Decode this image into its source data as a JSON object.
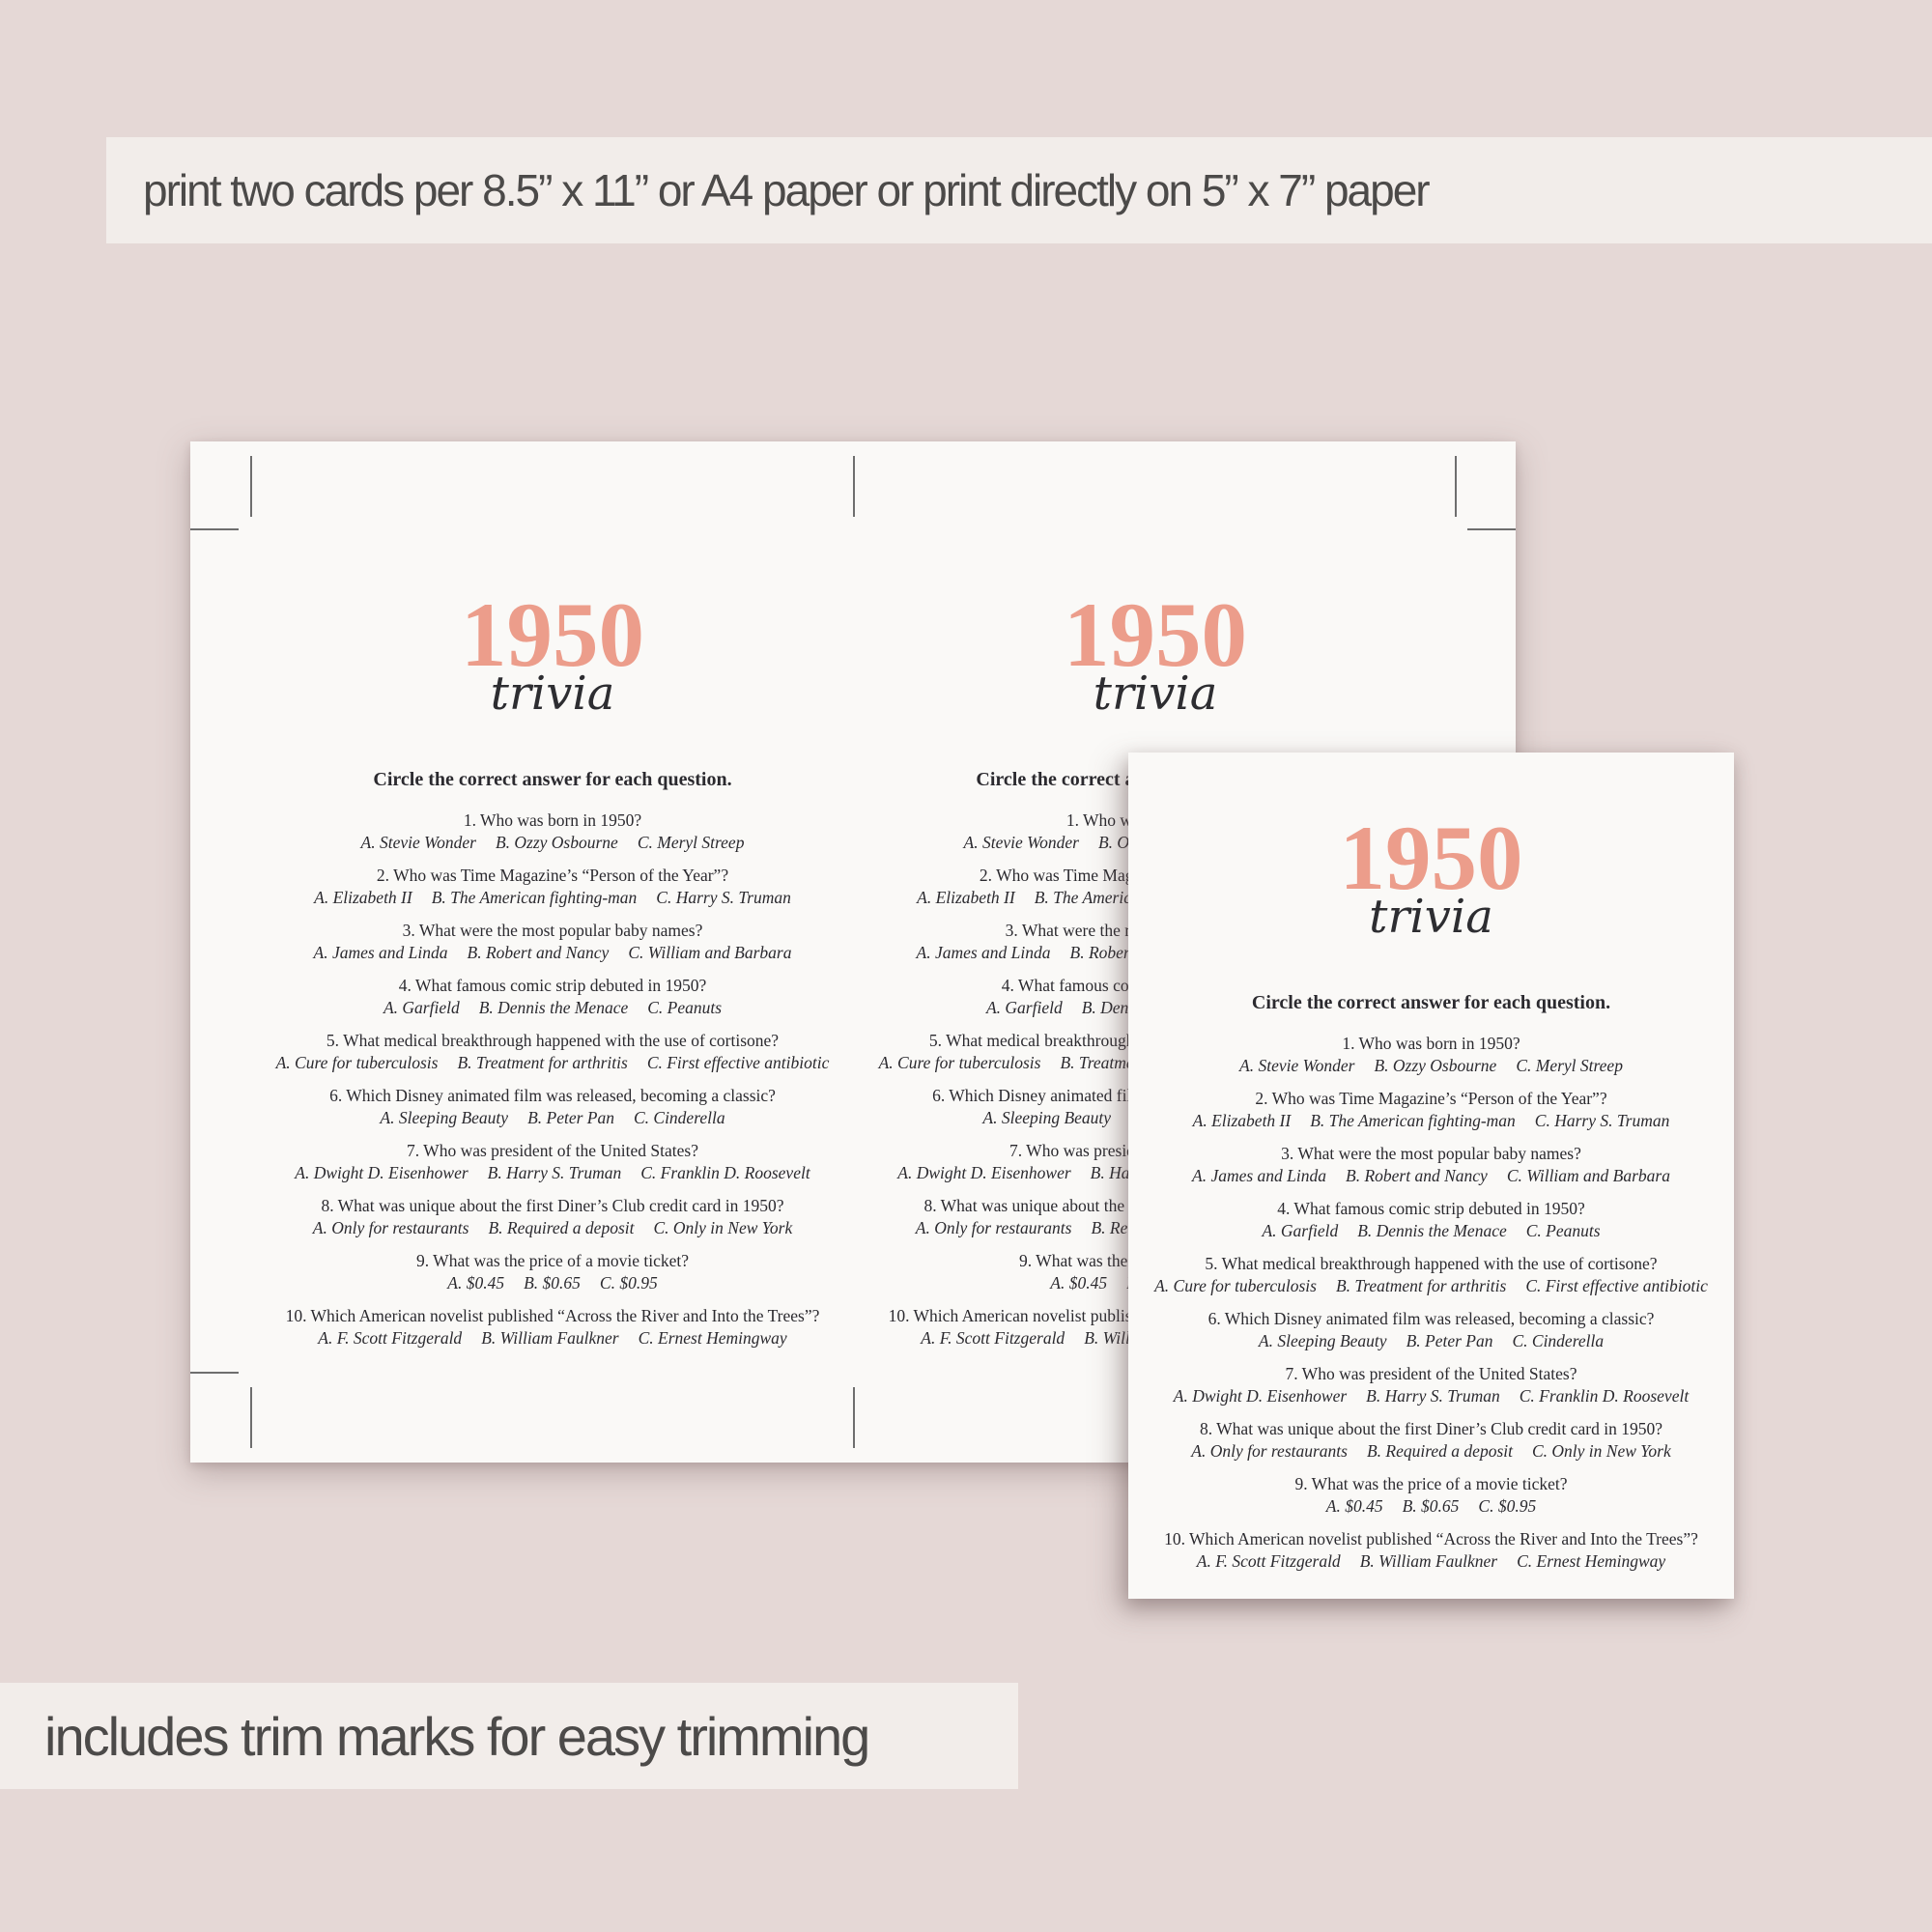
{
  "banners": {
    "top": "print two cards per 8.5” x 11” or A4 paper or print directly on 5” x 7” paper",
    "bottom": "includes trim marks for easy trimming"
  },
  "card": {
    "year": "1950",
    "subtitle": "trivia",
    "instruction": "Circle the correct answer for each question.",
    "questions": [
      {
        "q": "1. Who was born in 1950?",
        "options": [
          "A. Stevie Wonder",
          "B. Ozzy Osbourne",
          "C. Meryl Streep"
        ]
      },
      {
        "q": "2. Who was Time Magazine’s “Person of the Year”?",
        "options": [
          "A. Elizabeth II",
          "B. The American fighting-man",
          "C. Harry S. Truman"
        ]
      },
      {
        "q": "3. What were the most popular baby names?",
        "options": [
          "A. James and Linda",
          "B. Robert and Nancy",
          "C. William and Barbara"
        ]
      },
      {
        "q": "4. What famous comic strip debuted in 1950?",
        "options": [
          "A. Garfield",
          "B. Dennis the Menace",
          "C. Peanuts"
        ]
      },
      {
        "q": "5. What medical breakthrough happened with the use of cortisone?",
        "options": [
          "A. Cure for tuberculosis",
          "B. Treatment for arthritis",
          "C. First effective antibiotic"
        ]
      },
      {
        "q": "6. Which Disney animated film was released, becoming a classic?",
        "options": [
          "A. Sleeping Beauty",
          "B. Peter Pan",
          "C. Cinderella"
        ]
      },
      {
        "q": "7. Who was president of the United States?",
        "options": [
          "A. Dwight D. Eisenhower",
          "B. Harry S. Truman",
          "C. Franklin D. Roosevelt"
        ]
      },
      {
        "q": "8. What was unique about the first Diner’s Club credit card in 1950?",
        "options": [
          "A. Only for restaurants",
          "B. Required a deposit",
          "C. Only in New York"
        ]
      },
      {
        "q": "9. What was the price of a movie ticket?",
        "options": [
          "A. $0.45",
          "B. $0.65",
          "C. $0.95"
        ]
      },
      {
        "q": "10. Which American novelist published “Across the River and Into the Trees”?",
        "options": [
          "A. F. Scott Fitzgerald",
          "B. William Faulkner",
          "C. Ernest Hemingway"
        ]
      }
    ]
  },
  "colors": {
    "background": "#e5d8d6",
    "banner": "#f2edea",
    "paper": "#faf9f7",
    "accent": "#ec9d8b",
    "text": "#2b2a2f",
    "banner_text": "#4c4a49",
    "trim": "#6e6e6e"
  }
}
